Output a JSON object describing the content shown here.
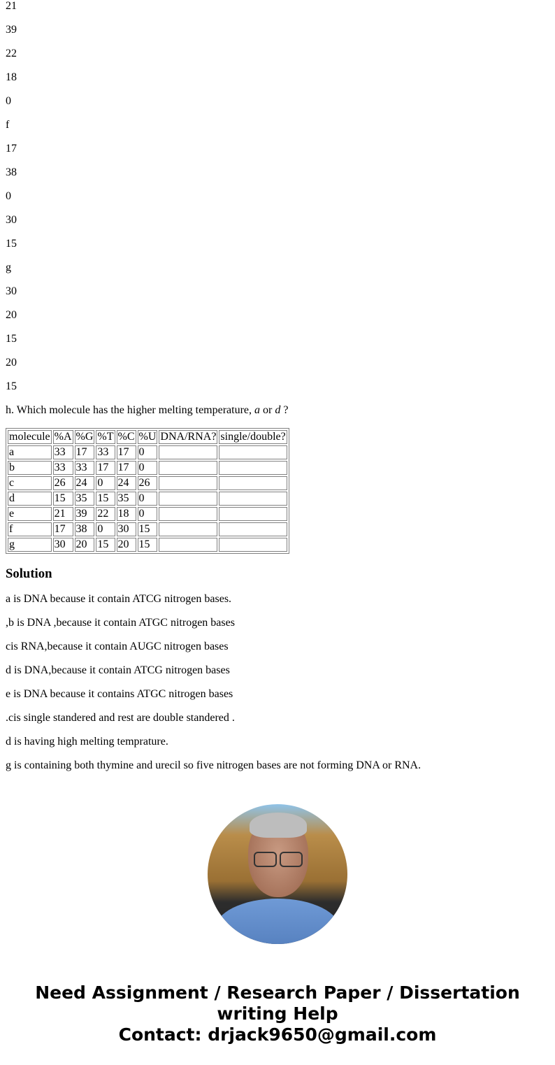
{
  "top_values": [
    "21",
    "39",
    "22",
    "18",
    "0",
    "f",
    "17",
    "38",
    "0",
    "30",
    "15",
    "g",
    "30",
    "20",
    "15",
    "20",
    "15"
  ],
  "question": {
    "prefix": "h. Which molecule has the higher melting temperature, ",
    "opt1": "a",
    "mid": " or ",
    "opt2": "d",
    "suffix": " ?"
  },
  "table": {
    "headers": [
      "molecule",
      "%A",
      "%G",
      "%T",
      "%C",
      "%U",
      "DNA/RNA?",
      "single/double?"
    ],
    "rows": [
      [
        "a",
        "33",
        "17",
        "33",
        "17",
        "0",
        "",
        ""
      ],
      [
        "b",
        "33",
        "33",
        "17",
        "17",
        "0",
        "",
        ""
      ],
      [
        "c",
        "26",
        "24",
        "0",
        "24",
        "26",
        "",
        ""
      ],
      [
        "d",
        "15",
        "35",
        "15",
        "35",
        "0",
        "",
        ""
      ],
      [
        "e",
        "21",
        "39",
        "22",
        "18",
        "0",
        "",
        ""
      ],
      [
        "f",
        "17",
        "38",
        "0",
        "30",
        "15",
        "",
        ""
      ],
      [
        "g",
        "30",
        "20",
        "15",
        "20",
        "15",
        "",
        ""
      ]
    ]
  },
  "solution": {
    "heading": "Solution",
    "lines": [
      "a is DNA because it contain ATCG nitrogen bases.",
      ",b is DNA ,because it contain ATGC nitrogen bases",
      "cis RNA,because it contain AUGC nitrogen bases",
      "d is DNA,because it contain ATCG nitrogen bases",
      "e is DNA because it contains ATGC nitrogen bases",
      ".cis single standered and rest are double standered .",
      "d is having high melting temprature.",
      "g is containing both thymine and urecil so five nitrogen bases are not forming DNA or RNA."
    ]
  },
  "footer": {
    "line1": "Need Assignment / Research Paper / Dissertation",
    "line2": "writing Help",
    "line3": "Contact: drjack9650@gmail.com"
  }
}
